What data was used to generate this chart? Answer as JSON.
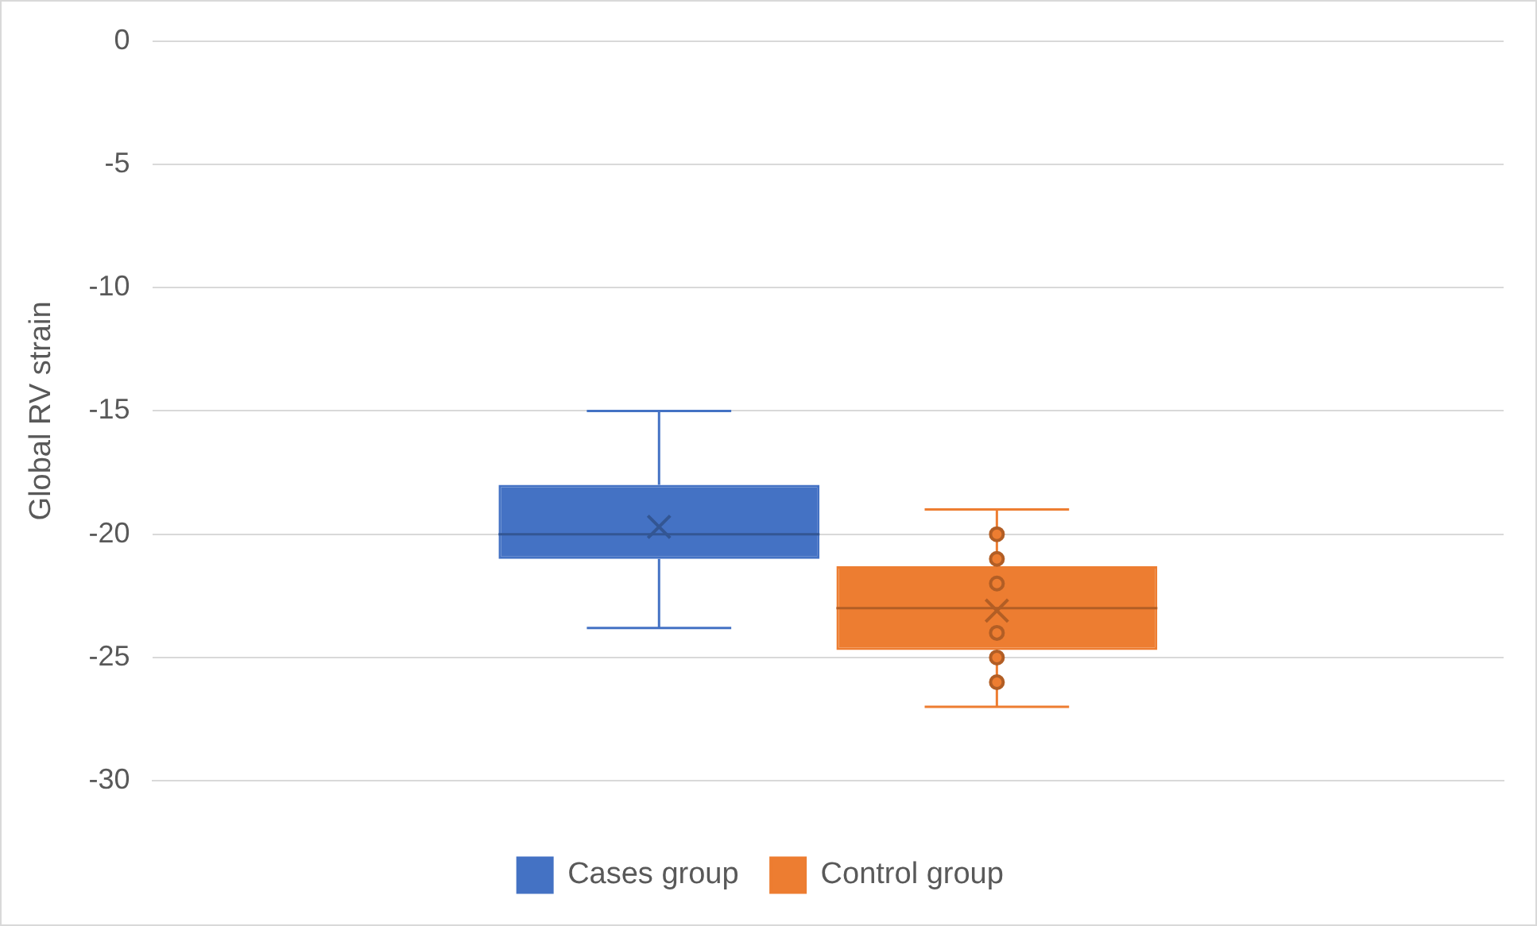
{
  "chart_data": {
    "type": "box",
    "ylabel": "Global RV strain",
    "categories": [
      null
    ],
    "series": [
      {
        "name": "Cases group",
        "color": "#4472c4",
        "boxes": [
          {
            "low": -23.8,
            "q1": -21,
            "median": -20,
            "q3": -18,
            "high": -15,
            "mean": -19.7
          }
        ]
      },
      {
        "name": "Control group",
        "color": "#ed7d31",
        "boxes": [
          {
            "low": -27,
            "q1": -24.7,
            "median": -23,
            "q3": -21.3,
            "high": -19,
            "mean": -23.1,
            "outliers": [
              -20,
              -21,
              -22,
              -24,
              -25,
              -26
            ]
          }
        ]
      }
    ],
    "ylim": [
      -30,
      0
    ],
    "yticks": [
      0,
      -5,
      -10,
      -15,
      -20,
      -25,
      -30
    ],
    "grid": "y",
    "legend": "bottom"
  }
}
